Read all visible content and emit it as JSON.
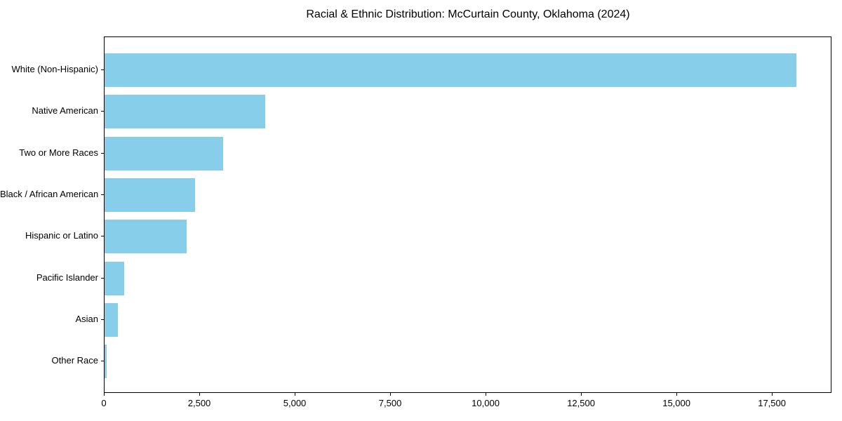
{
  "chart_data": {
    "type": "bar",
    "orientation": "horizontal",
    "title": "Racial & Ethnic Distribution: McCurtain County, Oklahoma (2024)",
    "categories": [
      "White (Non-Hispanic)",
      "Native American",
      "Two or More Races",
      "Black / African American",
      "Hispanic or Latino",
      "Pacific Islander",
      "Asian",
      "Other Race"
    ],
    "values": [
      18150,
      4210,
      3120,
      2375,
      2155,
      515,
      345,
      60
    ],
    "xlim": [
      0,
      19060
    ],
    "xtick_values": [
      0,
      2500,
      5000,
      7500,
      10000,
      12500,
      15000,
      17500
    ],
    "xtick_labels": [
      "0",
      "2,500",
      "5,000",
      "7,500",
      "10,000",
      "12,500",
      "15,000",
      "17,500"
    ],
    "xlabel": "",
    "ylabel": "",
    "grid": false,
    "legend_position": "none",
    "bar_color": "#87CEEB",
    "axis_color": "#000000",
    "background_color": "#ffffff"
  }
}
